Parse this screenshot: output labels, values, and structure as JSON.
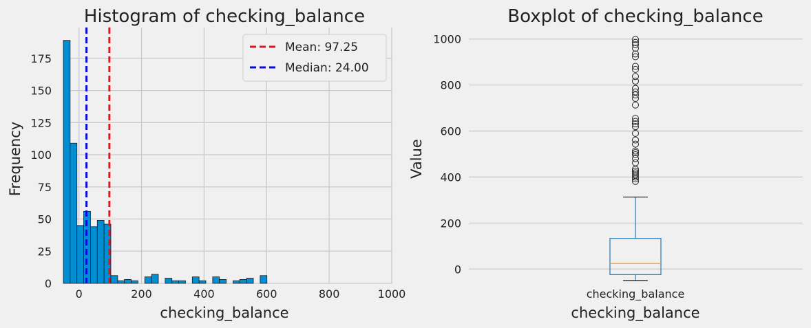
{
  "chart_data": [
    {
      "type": "bar",
      "title": "Histogram of checking_balance",
      "xlabel": "checking_balance",
      "ylabel": "Frequency",
      "xlim": [
        -50,
        1000
      ],
      "ylim": [
        0,
        199
      ],
      "xticks": [
        0,
        200,
        400,
        600,
        800,
        1000
      ],
      "yticks": [
        0,
        25,
        50,
        75,
        100,
        125,
        150,
        175
      ],
      "bin_width": 21.7,
      "bins": [
        {
          "x0": -50.0,
          "count": 189
        },
        {
          "x0": -28.3,
          "count": 109
        },
        {
          "x0": -6.6,
          "count": 45
        },
        {
          "x0": 15.1,
          "count": 56
        },
        {
          "x0": 36.8,
          "count": 44
        },
        {
          "x0": 58.5,
          "count": 49
        },
        {
          "x0": 80.2,
          "count": 46
        },
        {
          "x0": 101.9,
          "count": 6
        },
        {
          "x0": 123.6,
          "count": 2
        },
        {
          "x0": 145.3,
          "count": 3
        },
        {
          "x0": 167.0,
          "count": 2
        },
        {
          "x0": 188.7,
          "count": 0
        },
        {
          "x0": 210.4,
          "count": 5
        },
        {
          "x0": 232.1,
          "count": 7
        },
        {
          "x0": 253.8,
          "count": 0
        },
        {
          "x0": 275.5,
          "count": 4
        },
        {
          "x0": 297.2,
          "count": 2
        },
        {
          "x0": 318.9,
          "count": 2
        },
        {
          "x0": 340.6,
          "count": 0
        },
        {
          "x0": 362.3,
          "count": 5
        },
        {
          "x0": 384.0,
          "count": 2
        },
        {
          "x0": 405.7,
          "count": 0
        },
        {
          "x0": 427.4,
          "count": 5
        },
        {
          "x0": 449.1,
          "count": 3
        },
        {
          "x0": 470.8,
          "count": 0
        },
        {
          "x0": 492.5,
          "count": 2
        },
        {
          "x0": 514.2,
          "count": 3
        },
        {
          "x0": 535.9,
          "count": 4
        },
        {
          "x0": 557.6,
          "count": 0
        },
        {
          "x0": 579.3,
          "count": 6
        }
      ],
      "bar_color": "#008fd5",
      "lines": [
        {
          "label": "Mean: 97.25",
          "x": 97.25,
          "color": "#e5131e"
        },
        {
          "label": "Median: 24.00",
          "x": 24.0,
          "color": "#0a0adf"
        }
      ],
      "legend_position": "top-right",
      "grid": true
    },
    {
      "type": "boxplot",
      "title": "Boxplot of checking_balance",
      "xlabel": "checking_balance",
      "ylabel": "Value",
      "category": "checking_balance",
      "ylim": [
        -62,
        1050
      ],
      "yticks": [
        0,
        200,
        400,
        600,
        800,
        1000
      ],
      "whisker_low": -50,
      "q1": -24,
      "median": 24,
      "q3": 133,
      "whisker_high": 313,
      "outliers": [
        381,
        392,
        400,
        409,
        418,
        426,
        434,
        462,
        480,
        497,
        506,
        513,
        543,
        561,
        590,
        619,
        631,
        642,
        655,
        713,
        742,
        757,
        770,
        785,
        817,
        837,
        868,
        881,
        923,
        935,
        960,
        975,
        985,
        998
      ],
      "box_color": "#1f77b4",
      "median_color": "#ff9f0e",
      "grid": true
    }
  ]
}
